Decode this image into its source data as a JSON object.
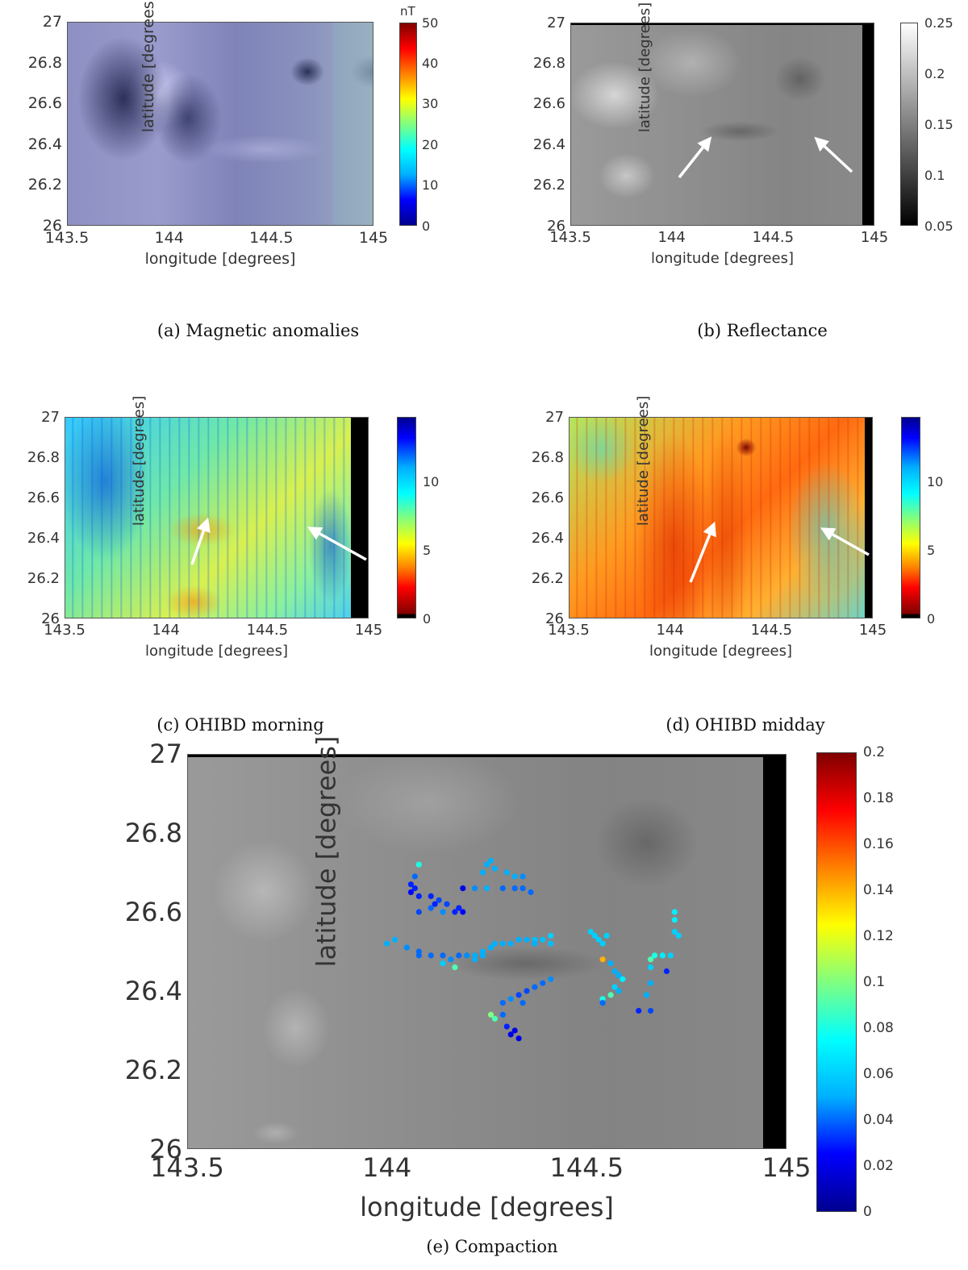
{
  "axes": {
    "xlabel": "longitude [degrees]",
    "ylabel": "latitude [degrees]",
    "x_ticks": [
      "143.5",
      "144",
      "144.5",
      "145"
    ],
    "y_ticks": [
      "27",
      "26.8",
      "26.6",
      "26.4",
      "26.2",
      "26"
    ]
  },
  "panel_a": {
    "caption": "(a) Magnetic anomalies",
    "colorbar_unit": "nT",
    "colorbar_ticks": [
      "50",
      "40",
      "30",
      "20",
      "10",
      "0"
    ]
  },
  "panel_b": {
    "caption": "(b) Reflectance",
    "colorbar_ticks": [
      "0.25",
      "0.2",
      "0.15",
      "0.1",
      "0.05"
    ]
  },
  "panel_c": {
    "caption": "(c) OHIBD morning",
    "colorbar_ticks": [
      "10",
      "5",
      "0"
    ]
  },
  "panel_d": {
    "caption": "(d) OHIBD midday",
    "colorbar_ticks": [
      "10",
      "5",
      "0"
    ]
  },
  "panel_e": {
    "caption": "(e) Compaction",
    "colorbar_ticks": [
      "0.2",
      "0.18",
      "0.16",
      "0.14",
      "0.12",
      "0.1",
      "0.08",
      "0.06",
      "0.04",
      "0.02",
      "0"
    ]
  },
  "colors": {
    "jet": [
      "#00008f",
      "#0000ff",
      "#00b0ff",
      "#00ffff",
      "#80ff80",
      "#ffff00",
      "#ff8000",
      "#ff0000",
      "#800000"
    ]
  },
  "chart_data": {
    "type": "scatter",
    "xlim": [
      143.5,
      145
    ],
    "ylim": [
      26,
      27
    ],
    "color_range": [
      0,
      0.2
    ],
    "points": [
      [
        144.08,
        26.72,
        0.08
      ],
      [
        144.07,
        26.69,
        0.04
      ],
      [
        144.06,
        26.67,
        0.03
      ],
      [
        144.07,
        26.66,
        0.03
      ],
      [
        144.06,
        26.65,
        0.025
      ],
      [
        144.08,
        26.64,
        0.03
      ],
      [
        144.11,
        26.64,
        0.03
      ],
      [
        144.13,
        26.63,
        0.035
      ],
      [
        144.12,
        26.62,
        0.03
      ],
      [
        144.15,
        26.62,
        0.035
      ],
      [
        144.11,
        26.61,
        0.04
      ],
      [
        144.18,
        26.61,
        0.03
      ],
      [
        144.19,
        26.6,
        0.025
      ],
      [
        144.17,
        26.6,
        0.03
      ],
      [
        144.08,
        26.6,
        0.035
      ],
      [
        144.14,
        26.6,
        0.045
      ],
      [
        144.19,
        26.66,
        0.02
      ],
      [
        144.25,
        26.72,
        0.05
      ],
      [
        144.26,
        26.73,
        0.05
      ],
      [
        144.27,
        26.71,
        0.05
      ],
      [
        144.24,
        26.7,
        0.05
      ],
      [
        144.3,
        26.7,
        0.05
      ],
      [
        144.32,
        26.69,
        0.05
      ],
      [
        144.34,
        26.69,
        0.045
      ],
      [
        144.25,
        26.66,
        0.05
      ],
      [
        144.22,
        26.66,
        0.045
      ],
      [
        144.29,
        26.66,
        0.04
      ],
      [
        144.32,
        26.66,
        0.04
      ],
      [
        144.34,
        26.66,
        0.04
      ],
      [
        144.36,
        26.65,
        0.04
      ],
      [
        144.0,
        26.52,
        0.05
      ],
      [
        144.02,
        26.53,
        0.05
      ],
      [
        144.05,
        26.51,
        0.05
      ],
      [
        144.08,
        26.5,
        0.04
      ],
      [
        144.08,
        26.49,
        0.04
      ],
      [
        144.11,
        26.49,
        0.04
      ],
      [
        144.14,
        26.49,
        0.04
      ],
      [
        144.16,
        26.48,
        0.045
      ],
      [
        144.18,
        26.49,
        0.04
      ],
      [
        144.2,
        26.49,
        0.045
      ],
      [
        144.22,
        26.49,
        0.05
      ],
      [
        144.24,
        26.5,
        0.05
      ],
      [
        144.26,
        26.51,
        0.05
      ],
      [
        144.27,
        26.52,
        0.05
      ],
      [
        144.29,
        26.52,
        0.05
      ],
      [
        144.31,
        26.52,
        0.05
      ],
      [
        144.33,
        26.53,
        0.05
      ],
      [
        144.35,
        26.53,
        0.05
      ],
      [
        144.37,
        26.53,
        0.055
      ],
      [
        144.39,
        26.53,
        0.055
      ],
      [
        144.41,
        26.54,
        0.06
      ],
      [
        144.37,
        26.52,
        0.05
      ],
      [
        144.41,
        26.52,
        0.055
      ],
      [
        144.26,
        26.51,
        0.05
      ],
      [
        144.24,
        26.49,
        0.05
      ],
      [
        144.22,
        26.48,
        0.05
      ],
      [
        144.14,
        26.47,
        0.06
      ],
      [
        144.17,
        26.46,
        0.09
      ],
      [
        144.05,
        26.51,
        0.045
      ],
      [
        144.26,
        26.34,
        0.1
      ],
      [
        144.27,
        26.33,
        0.09
      ],
      [
        144.29,
        26.34,
        0.04
      ],
      [
        144.3,
        26.31,
        0.03
      ],
      [
        144.31,
        26.29,
        0.02
      ],
      [
        144.32,
        26.3,
        0.02
      ],
      [
        144.33,
        26.28,
        0.02
      ],
      [
        144.29,
        26.37,
        0.04
      ],
      [
        144.31,
        26.38,
        0.045
      ],
      [
        144.34,
        26.37,
        0.04
      ],
      [
        144.33,
        26.39,
        0.035
      ],
      [
        144.35,
        26.4,
        0.035
      ],
      [
        144.37,
        26.41,
        0.04
      ],
      [
        144.39,
        26.42,
        0.04
      ],
      [
        144.41,
        26.43,
        0.045
      ],
      [
        144.51,
        26.55,
        0.06
      ],
      [
        144.52,
        26.54,
        0.06
      ],
      [
        144.53,
        26.53,
        0.06
      ],
      [
        144.55,
        26.54,
        0.06
      ],
      [
        144.54,
        26.48,
        0.14
      ],
      [
        144.54,
        26.52,
        0.06
      ],
      [
        144.56,
        26.47,
        0.05
      ],
      [
        144.57,
        26.45,
        0.05
      ],
      [
        144.58,
        26.44,
        0.05
      ],
      [
        144.59,
        26.43,
        0.07
      ],
      [
        144.57,
        26.41,
        0.06
      ],
      [
        144.58,
        26.4,
        0.05
      ],
      [
        144.56,
        26.39,
        0.09
      ],
      [
        144.54,
        26.38,
        0.08
      ],
      [
        144.54,
        26.37,
        0.04
      ],
      [
        144.63,
        26.35,
        0.03
      ],
      [
        144.66,
        26.35,
        0.035
      ],
      [
        144.65,
        26.39,
        0.05
      ],
      [
        144.66,
        26.42,
        0.05
      ],
      [
        144.66,
        26.46,
        0.06
      ],
      [
        144.66,
        26.48,
        0.09
      ],
      [
        144.67,
        26.49,
        0.08
      ],
      [
        144.69,
        26.49,
        0.07
      ],
      [
        144.71,
        26.49,
        0.06
      ],
      [
        144.7,
        26.45,
        0.03
      ],
      [
        144.72,
        26.55,
        0.06
      ],
      [
        144.73,
        26.54,
        0.06
      ],
      [
        144.72,
        26.58,
        0.07
      ],
      [
        144.72,
        26.6,
        0.07
      ]
    ]
  }
}
